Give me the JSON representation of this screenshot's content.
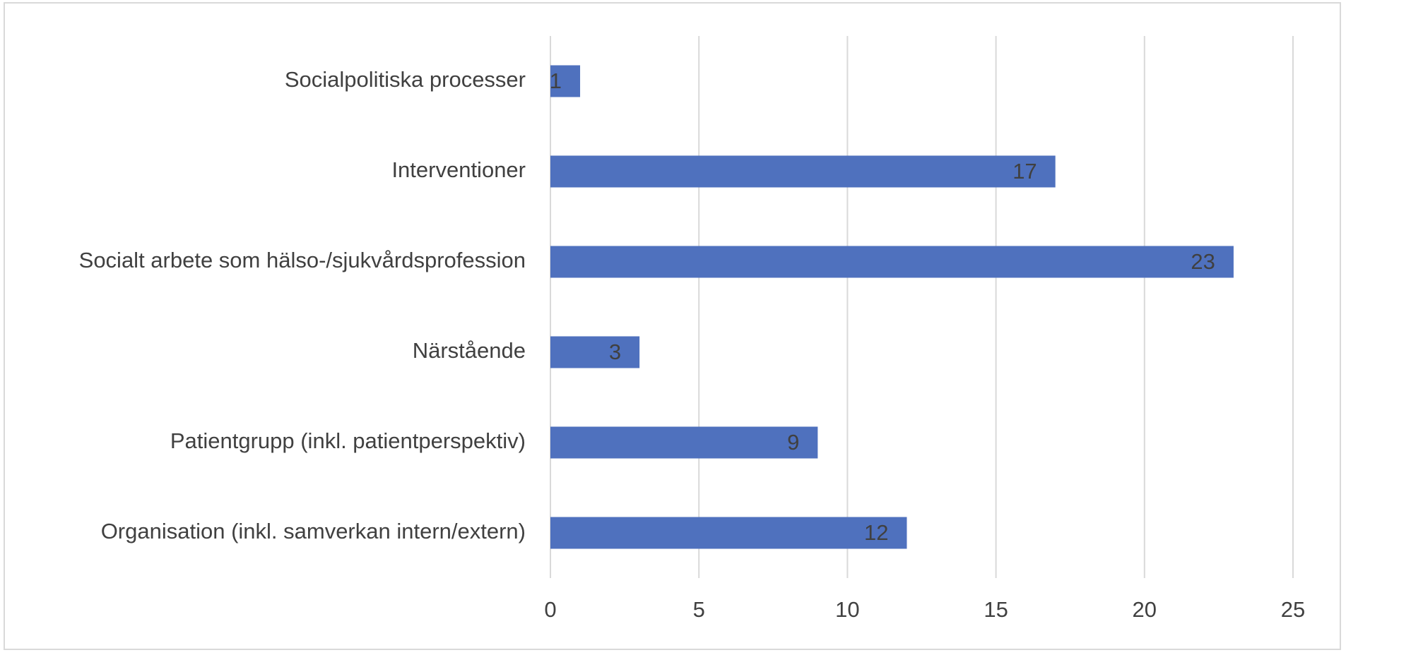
{
  "chart_data": {
    "type": "barh",
    "categories": [
      "Socialpolitiska processer",
      "Interventioner",
      "Socialt arbete som hälso-/sjukvårdsprofession",
      "Närstående",
      "Patientgrupp (inkl. patientperspektiv)",
      "Organisation (inkl. samverkan intern/extern)"
    ],
    "values": [
      1,
      17,
      23,
      3,
      9,
      12
    ],
    "color": "#4f71be",
    "xlim": [
      0,
      25
    ],
    "xticks": [
      0,
      5,
      10,
      15,
      20,
      25
    ],
    "grid": true,
    "data_labels": true
  }
}
